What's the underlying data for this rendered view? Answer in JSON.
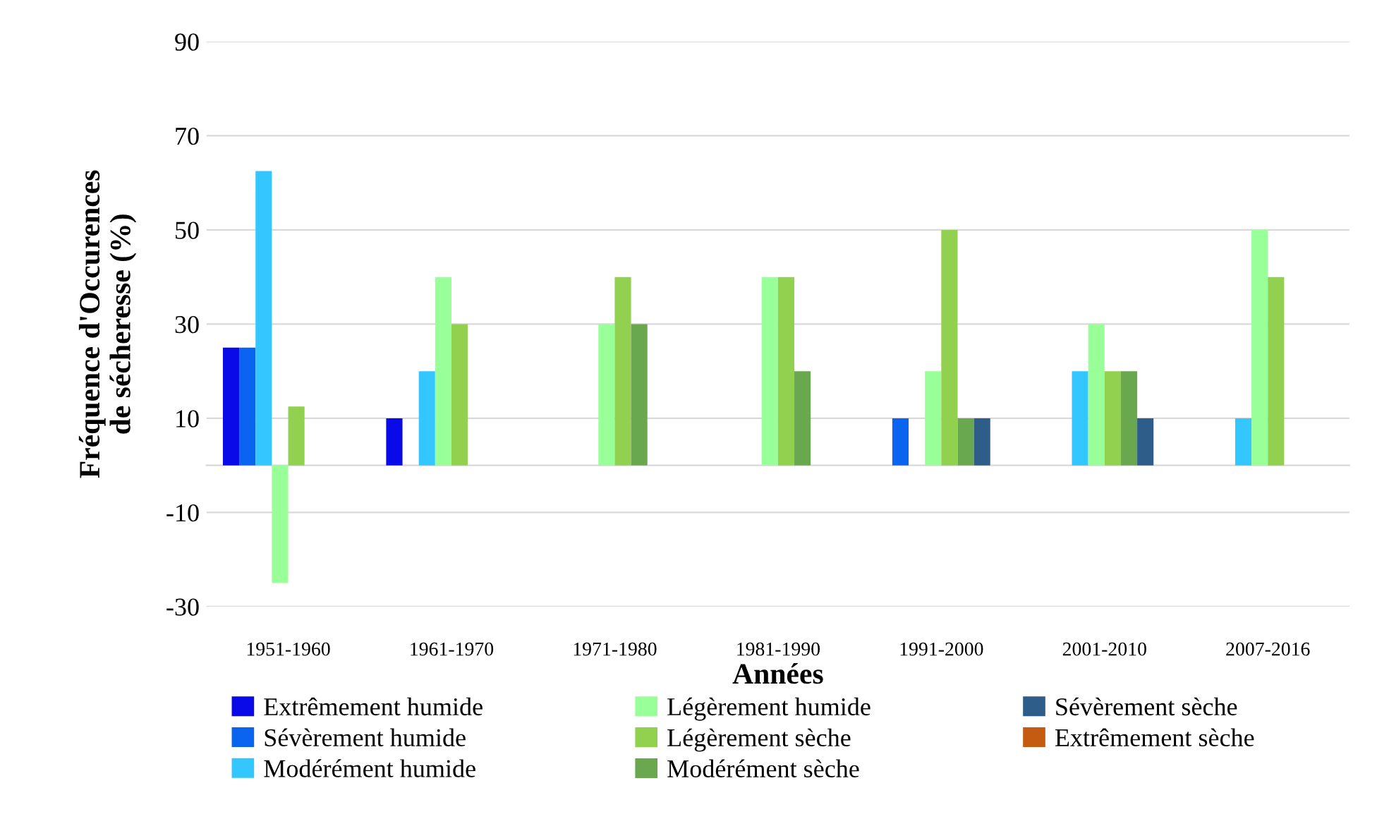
{
  "chart_data": {
    "type": "bar",
    "xlabel": "Années",
    "ylabel": "Fréquence d'Occurences\nde sécheresse (%)",
    "categories": [
      "1951-1960",
      "1961-1970",
      "1971-1980",
      "1981-1990",
      "1991-2000",
      "2001-2010",
      "2007-2016"
    ],
    "series": [
      {
        "name": "Extrêmement humide",
        "color": "#0a0ae8",
        "values": [
          25,
          10,
          0,
          0,
          0,
          0,
          0
        ]
      },
      {
        "name": "Sévèrement humide",
        "color": "#0a64f0",
        "values": [
          25,
          0,
          0,
          0,
          10,
          0,
          0
        ]
      },
      {
        "name": "Modérément humide",
        "color": "#33c6ff",
        "values": [
          62.5,
          20,
          0,
          0,
          0,
          20,
          10
        ]
      },
      {
        "name": "Légèrement humide",
        "color": "#99ff99",
        "values": [
          -25,
          40,
          30,
          40,
          20,
          30,
          50
        ]
      },
      {
        "name": "Légèrement sèche",
        "color": "#92d050",
        "values": [
          12.5,
          30,
          40,
          40,
          50,
          20,
          40
        ]
      },
      {
        "name": "Modérément sèche",
        "color": "#6aa84f",
        "values": [
          0,
          0,
          30,
          20,
          10,
          20,
          0
        ]
      },
      {
        "name": "Sévèrement sèche",
        "color": "#2f5d8a",
        "values": [
          0,
          0,
          0,
          0,
          10,
          10,
          0
        ]
      },
      {
        "name": "Extrêmement sèche",
        "color": "#c55a11",
        "values": [
          0,
          0,
          0,
          0,
          0,
          0,
          0
        ]
      }
    ],
    "ylim": [
      -30,
      90
    ],
    "yticks": [
      -30,
      -10,
      10,
      30,
      50,
      70,
      90
    ],
    "grid": "y",
    "legend": "bottom"
  }
}
